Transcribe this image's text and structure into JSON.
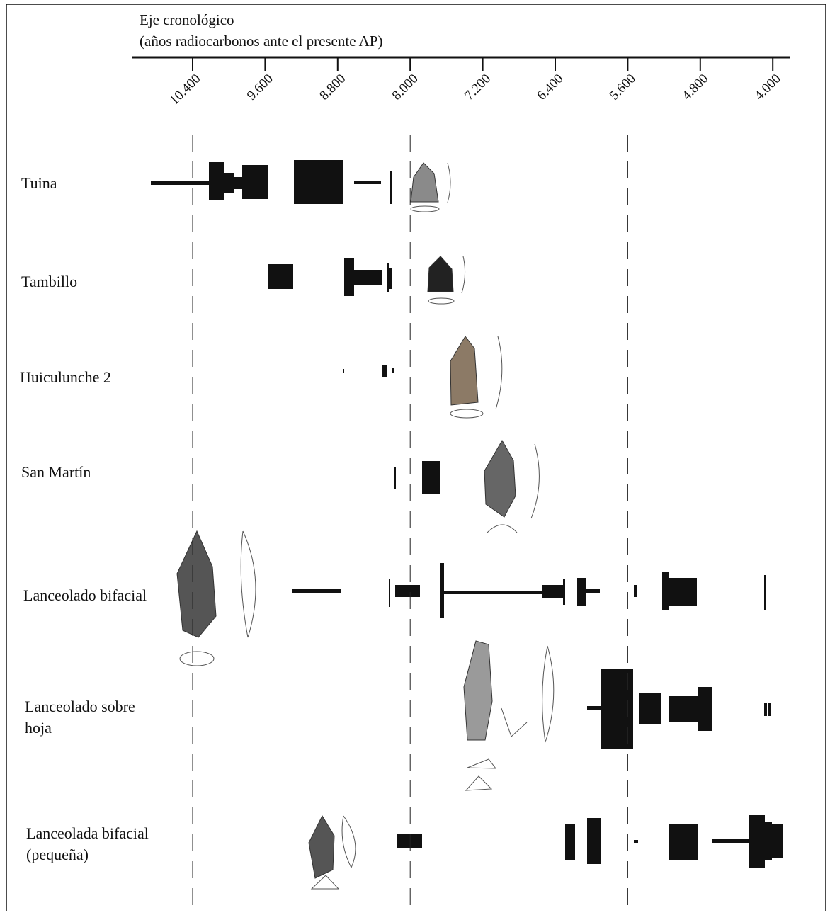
{
  "axis": {
    "title": [
      "Eje cronológico",
      "(años radiocarbonos ante el presente AP)"
    ],
    "ticks": [
      {
        "value": 10400,
        "label": "10.400"
      },
      {
        "value": 9600,
        "label": "9.600"
      },
      {
        "value": 8800,
        "label": "8.800"
      },
      {
        "value": 8000,
        "label": "8.000"
      },
      {
        "value": 7200,
        "label": "7.200"
      },
      {
        "value": 6400,
        "label": "6.400"
      },
      {
        "value": 5600,
        "label": "5.600"
      },
      {
        "value": 4800,
        "label": "4.800"
      },
      {
        "value": 4000,
        "label": "4.000"
      }
    ]
  },
  "rows": [
    {
      "label": [
        "Tuina"
      ]
    },
    {
      "label": [
        "Tambillo"
      ]
    },
    {
      "label": [
        "Huiculunche 2"
      ]
    },
    {
      "label": [
        "San Martín"
      ]
    },
    {
      "label": [
        "Lanceolado bifacial"
      ]
    },
    {
      "label": [
        "Lanceolado sobre",
        "hoja"
      ]
    },
    {
      "label": [
        "Lanceolada bifacial",
        "(pequeña)"
      ]
    }
  ]
}
